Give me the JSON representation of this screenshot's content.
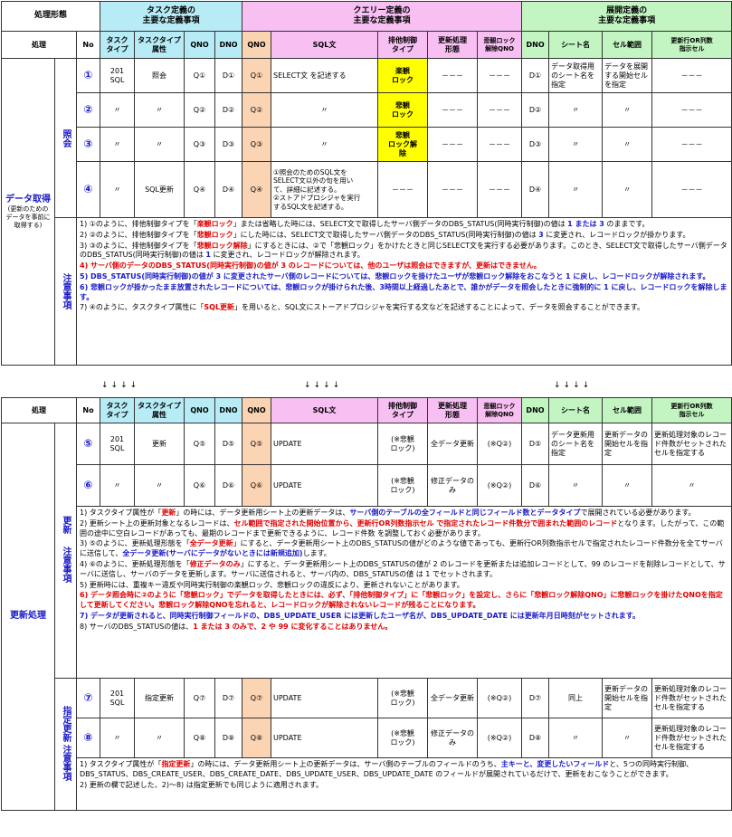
{
  "header": {
    "proc_form": "処理形態",
    "task_def": "タスク定義の\n主要な定義事項",
    "query_def": "クエリー定義の\n主要な定義事項",
    "dev_def": "展開定義の\n主要な定義事項",
    "cols": {
      "proc": "処理",
      "no": "No",
      "task_type": "タスク\nタイプ",
      "task_attr": "タスクタイプ\n属性",
      "qno": "QNO",
      "dno": "DNO",
      "qno2": "QNO",
      "sql": "SQL文",
      "lock_type": "排他制御\nタイプ",
      "upd_form": "更新処理\n形態",
      "pess_unlock": "悲観ロック\n解除QNO",
      "dno2": "DNO",
      "sheet": "シート名",
      "cell_range": "セル範囲",
      "upd_cell": "更新行OR列数\n指示セル"
    }
  },
  "section1": {
    "proc_label": "データ取得",
    "proc_sub": "(更新のための\nデータを事前に\n取得する)",
    "sub_label": "照会",
    "notes_label": "注意事項",
    "rows": [
      {
        "no": "①",
        "type": "201 SQL",
        "attr": "照会",
        "qno": "Q①",
        "dno": "D①",
        "qno2": "Q①",
        "sql": "SELECT文 を記述する",
        "lock": "楽観\nロック",
        "upd": "－－－",
        "unlock": "－－－",
        "dno2": "D①",
        "sheet": "データ取得用のシート名を指定",
        "range": "データを展開する開始セルを指定",
        "cell": "－－－"
      },
      {
        "no": "②",
        "type": "〃",
        "attr": "〃",
        "qno": "Q②",
        "dno": "D②",
        "qno2": "Q②",
        "sql": "〃",
        "lock": "悲観\nロック",
        "upd": "－－－",
        "unlock": "－－－",
        "dno2": "D②",
        "sheet": "〃",
        "range": "〃",
        "cell": "－－－"
      },
      {
        "no": "③",
        "type": "〃",
        "attr": "〃",
        "qno": "Q③",
        "dno": "D③",
        "qno2": "Q③",
        "sql": "〃",
        "lock": "悲観\nロック解\n除",
        "upd": "－－－",
        "unlock": "－－－",
        "dno2": "D③",
        "sheet": "〃",
        "range": "〃",
        "cell": "－－－"
      },
      {
        "no": "④",
        "type": "〃",
        "attr": "SQL更新",
        "qno": "Q④",
        "dno": "D④",
        "qno2": "Q④",
        "sql": "①照会のためのSQL文を\nSELECT文以外の句を用い\nて、詳細に記述する。\n②ストアドプロシジャを実行\nするSQL文を記述する。",
        "lock": "－－－",
        "upd": "－－－",
        "unlock": "－－－",
        "dno2": "D④",
        "sheet": "〃",
        "range": "〃",
        "cell": "－－－"
      }
    ],
    "notes": [
      {
        "a": "1) ①のように、排他制御タイプを「",
        "b": "楽観ロック",
        "c": "」または省略した時には、SELECT文で取得したサーバ側データのDBS_STATUS(同時実行制御)の値は ",
        "d": "1 または 3",
        "e": " のままです。"
      },
      {
        "a": "2) ②のように、排他制御タイプを「",
        "b": "悲観ロック",
        "c": "」にした時には、SELECT文で取得したサーバ側データのDBS_STATUS(同時実行制御)の値は ",
        "d": "3",
        "e": " に変更され、レコードロックが掛かります。"
      },
      {
        "a": "3) ③のように、排他制御タイプを「",
        "b": "悲観ロック解除",
        "c": "」にするときには、②で「悲観ロック」をかけたときと同じSELECT文を実行する必要があります。このとき、SELECT文で取得したサーバ側データのDBS_STATUS(同時実行制御)の値は ",
        "d": "1",
        "e": " に変更され、レコードロックが解除されます。"
      },
      {
        "r": "4) サーバ側のデータのDBS_STATUS(同時実行制御)の値が 3 のレコードについては、他のユーザは照会はできますが、更新はできません。"
      },
      {
        "x": "5) DBS_STATUS(同時実行制御)の値が 3 に変更されたサーバ側のレコードについては、悲観ロックを掛けたユーザが悲観ロック解除をおこなうと 1 に戻し、レコードロックが解除されます。"
      },
      {
        "x": "6) 悲観ロックが掛かったまま放置されたレコードについては、悲観ロックが掛けられた後、3時間以上経過したあとで、誰かがデータを照会したときに強制的に 1 に戻し、レコードロックを解除します。"
      },
      {
        "a": "7) ④のように、タスクタイプ属性に「",
        "b": "SQL更新",
        "c": "」を用いると、SQL文にストーアドプロシジャを実行する文などを記述することによって、データを照会することができます。",
        "d": "",
        "e": ""
      }
    ]
  },
  "arrows": [
    "↓↓↓↓",
    "↓↓↓↓",
    "↓↓↓↓"
  ],
  "section2": {
    "proc_label": "更新処理",
    "sub_a": "更新",
    "sub_b": "指定更新",
    "notes_label": "注意事項",
    "rows_a": [
      {
        "no": "⑤",
        "type": "201 SQL",
        "attr": "更新",
        "qno": "Q⑤",
        "dno": "D⑤",
        "qno2": "Q⑤",
        "sql": "UPDATE",
        "lock": "(※悲観\nロック)",
        "upd": "全データ更新",
        "unlock": "(※Q②)",
        "dno2": "D⑤",
        "sheet": "データ更新用のシート名を指定",
        "range": "更新データの開始セルを指定",
        "cell": "更新処理対象のレコード件数がセットされたセルを指定する"
      },
      {
        "no": "⑥",
        "type": "〃",
        "attr": "〃",
        "qno": "Q⑥",
        "dno": "D⑥",
        "qno2": "Q⑥",
        "sql": "UPDATE",
        "lock": "(※悲観\nロック)",
        "upd": "修正データの\nみ",
        "unlock": "(※Q②)",
        "dno2": "D⑥",
        "sheet": "〃",
        "range": "〃",
        "cell": "〃"
      }
    ],
    "notes_a": [
      {
        "a": "1) タスクタイプ属性が「",
        "b": "更新",
        "c": "」の時には、データ更新用シート上の更新データは、",
        "d": "サーバ側のテーブルの全フィールドと同じフィールド数とデータタイプ",
        "e": "で展開されている必要があります。"
      },
      {
        "a": "2) 更新シート上の更新対象となるレコードは、",
        "b": "セル範囲で指定された開始位置から、更新行OR列数指示セル で指定されたレコード件数分で囲まれた範囲のレコード",
        "c": "となります。したがって、この範囲の途中に空白レコードがあっても、最期のレコードまで更新できるように、レコード件数 を調整しておく必要があります。",
        "d": "",
        "e": ""
      },
      {
        "a": "3) ⑤のように、更新処理形態を「",
        "b": "全データ更新",
        "c": "」にすると、データ更新用シート上のDBS_STATUSの値がどのような値であっても、更新行OR列数指示セルで指定されたレコード件数分を全てサーバに送信して、",
        "d": "全データ更新(サーバにデータがないときには新規追加)",
        "e": "します。"
      },
      {
        "a": "4) ⑥のように、更新処理形態を「",
        "b": "修正データのみ",
        "c": "」にすると、データ更新用シート上のDBS_STATUSの値が 2 のレコードを更新または追加レコードとして、99 のレコードを削除レコードとして、サーバに送信し、サーバのデータを更新します。サーバに送信されると、サーバ内の、DBS_STATUSの値 は 1 でセットされます。",
        "d": "",
        "e": ""
      },
      {
        "a": "5) 更新時には、重複キー違反や同時実行制御の楽観ロック、悲観ロックの違反により、更新されないことがあります。",
        "b": "",
        "c": "",
        "d": "",
        "e": ""
      },
      {
        "r": "6) データ照会時に②のように「悲観ロック」でデータを取得したときには、必ず、「排他制御タイプ」に「悲観ロック」を設定し、さらに「悲観ロック解除QNO」に悲観ロックを掛けたQNOを指定して更新してください。悲観ロック解除QNOを忘れると、レコードロックが解除されないレコードが残ることになります。"
      },
      {
        "x": "7) データが更新されると、同時実行制御フィールドの、DBS_UPDATE_USER には更新したユーザ名が、DBS_UPDATE_DATE には更新年月日時刻がセットされます。"
      },
      {
        "a": "8) サーバのDBS_STATUSの値は、",
        "b": "1 または 3 のみで、2 や 99 に変化することはありません。",
        "c": "",
        "d": "",
        "e": ""
      }
    ],
    "rows_b": [
      {
        "no": "⑦",
        "type": "201 SQL",
        "attr": "指定更新",
        "qno": "Q⑦",
        "dno": "D⑦",
        "qno2": "Q⑦",
        "sql": "UPDATE",
        "lock": "(※悲観\nロック)",
        "upd": "全データ更新",
        "unlock": "(※Q②)",
        "dno2": "D⑦",
        "sheet": "同上",
        "range": "更新データの開始セルを指定",
        "cell": "更新処理対象のレコード件数がセットされたセルを指定する"
      },
      {
        "no": "⑧",
        "type": "〃",
        "attr": "〃",
        "qno": "Q⑧",
        "dno": "D⑧",
        "qno2": "Q⑧",
        "sql": "UPDATE",
        "lock": "(※悲観\nロック)",
        "upd": "修正データの\nみ",
        "unlock": "(※Q②)",
        "dno2": "D⑧",
        "sheet": "〃",
        "range": "〃",
        "cell": "更新処理対象のレコード件数がセットされたセルを指定する"
      }
    ],
    "notes_b": [
      {
        "a": "1) タスクタイプ属性が「",
        "b": "指定更新",
        "c": "」の時には、データ更新用シート上の更新データは、サーバ側のテーブルのフィールドのうち、",
        "d": "主キーと、変更したいフィールド",
        "e": "と、5つの同時実行制御、DBS_STATUS、DBS_CREATE_USER、DBS_CREATE_DATE、DBS_UPDATE_USER、DBS_UPDATE_DATE のフィールドが展開されているだけで、更新をおこなうことができます。"
      },
      {
        "a": "2) 更新の欄で記述した、2)～8) は指定更新でも同じように適用されます。",
        "b": "",
        "c": "",
        "d": "",
        "e": ""
      }
    ]
  }
}
